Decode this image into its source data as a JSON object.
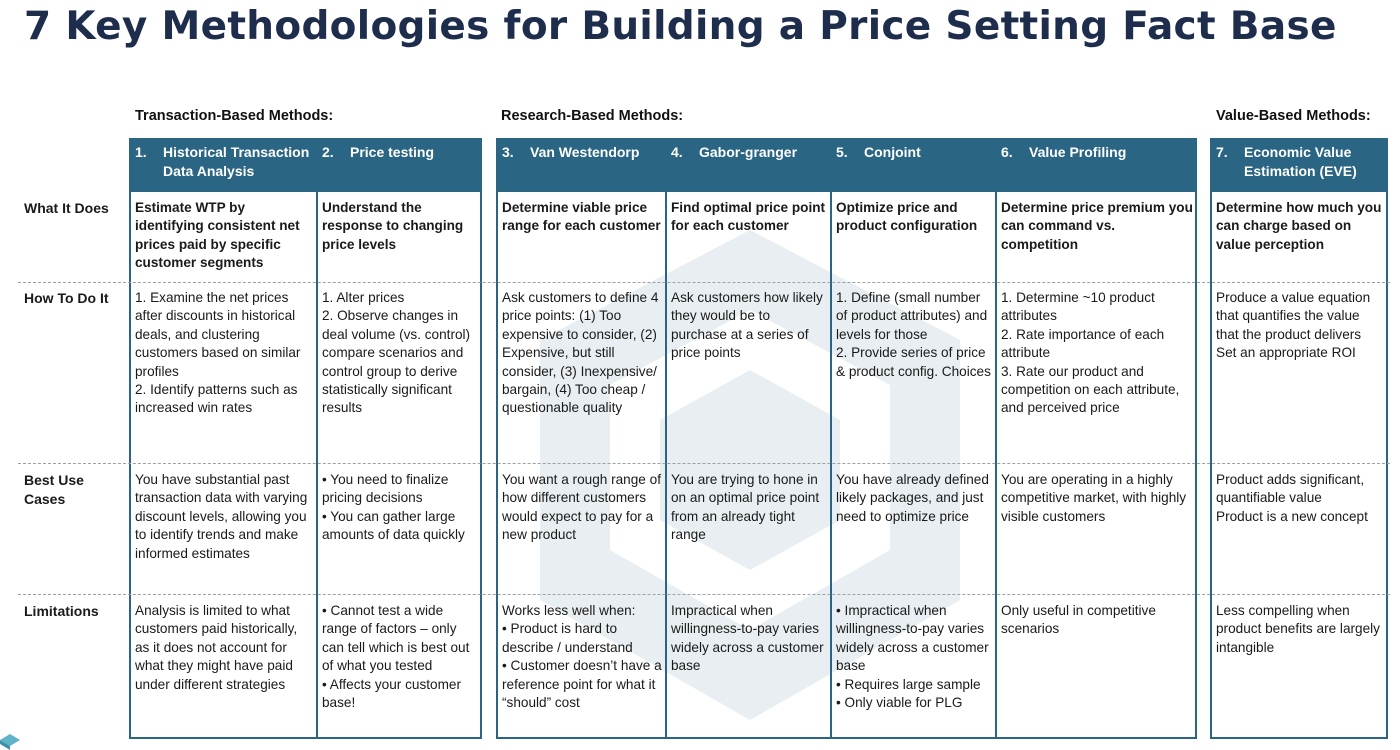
{
  "title": "7 Key Methodologies for Building a Price Setting Fact Base",
  "groups": {
    "transaction": "Transaction-Based Methods:",
    "research": "Research-Based Methods:",
    "value": "Value-Based Methods:"
  },
  "rows": {
    "what": "What It Does",
    "how": "How To Do It",
    "best": "Best Use\nCases",
    "limits": "Limitations"
  },
  "columns": [
    {
      "num": "1.",
      "name": "Historical Transaction Data Analysis",
      "what": "Estimate WTP by identifying consistent net prices paid by specific customer segments",
      "how": "1. Examine the net prices after discounts in historical deals, and clustering customers based on similar profiles\n2. Identify patterns such as increased win rates",
      "best": "You have substantial past transaction data with varying discount levels, allowing you to identify trends and make informed estimates",
      "limits": "Analysis is limited to what customers paid historically, as it does not account for what they might have paid under different strategies"
    },
    {
      "num": "2.",
      "name": "Price testing",
      "what": "Understand the response to changing price levels",
      "how": "1. Alter prices\n2. Observe changes in deal volume (vs. control) compare scenarios and control group to derive statistically significant results",
      "best": "• You need to finalize pricing decisions\n• You can gather large amounts of data quickly",
      "limits": "• Cannot test a wide range of factors – only can tell which is best out of what you tested\n• Affects your customer base!"
    },
    {
      "num": "3.",
      "name": "Van Westendorp",
      "what": "Determine viable price range for each customer",
      "how": "Ask customers to define 4 price points: (1) Too expensive to consider, (2) Expensive, but still consider, (3) Inexpensive/ bargain, (4) Too cheap / questionable quality",
      "best": "You want a rough range of how different customers would expect to pay for a new product",
      "limits": "Works less well when:\n• Product is hard to describe / understand\n• Customer doesn’t have a reference point for what it “should” cost"
    },
    {
      "num": "4.",
      "name": "Gabor-granger",
      "what": "Find optimal price point for each customer",
      "how": "Ask customers how likely they would be to purchase at a series of price points",
      "best": "You are trying to hone in on an optimal price point from an already tight range",
      "limits": "Impractical when willingness-to-pay varies widely across a customer base"
    },
    {
      "num": "5.",
      "name": "Conjoint",
      "what": "Optimize price and product configuration",
      "how": "1. Define (small number of product attributes) and levels for those\n2. Provide series of price & product config. Choices",
      "best": "You have already defined likely packages, and just need to optimize price",
      "limits": "• Impractical when willingness-to-pay varies widely across a customer base\n• Requires  large sample\n• Only viable for PLG"
    },
    {
      "num": "6.",
      "name": "Value Profiling",
      "what": "Determine price premium you can command vs. competition",
      "how": "1. Determine ~10 product attributes\n2. Rate importance of each attribute\n3. Rate our product and competition on each attribute, and perceived price",
      "best": "You are operating in a highly competitive market, with highly visible customers",
      "limits": "Only useful in competitive scenarios"
    },
    {
      "num": "7.",
      "name": "Economic Value Estimation (EVE)",
      "what": "Determine how much you can charge based on value perception",
      "how": "Produce a value equation that quantifies the value that the product delivers\nSet an appropriate ROI",
      "best": "Product adds significant, quantifiable value\nProduct is a new concept",
      "limits": "Less compelling when product benefits are largely intangible"
    }
  ],
  "colors": {
    "header_bg": "#2a6583",
    "title": "#1f2d4d"
  }
}
